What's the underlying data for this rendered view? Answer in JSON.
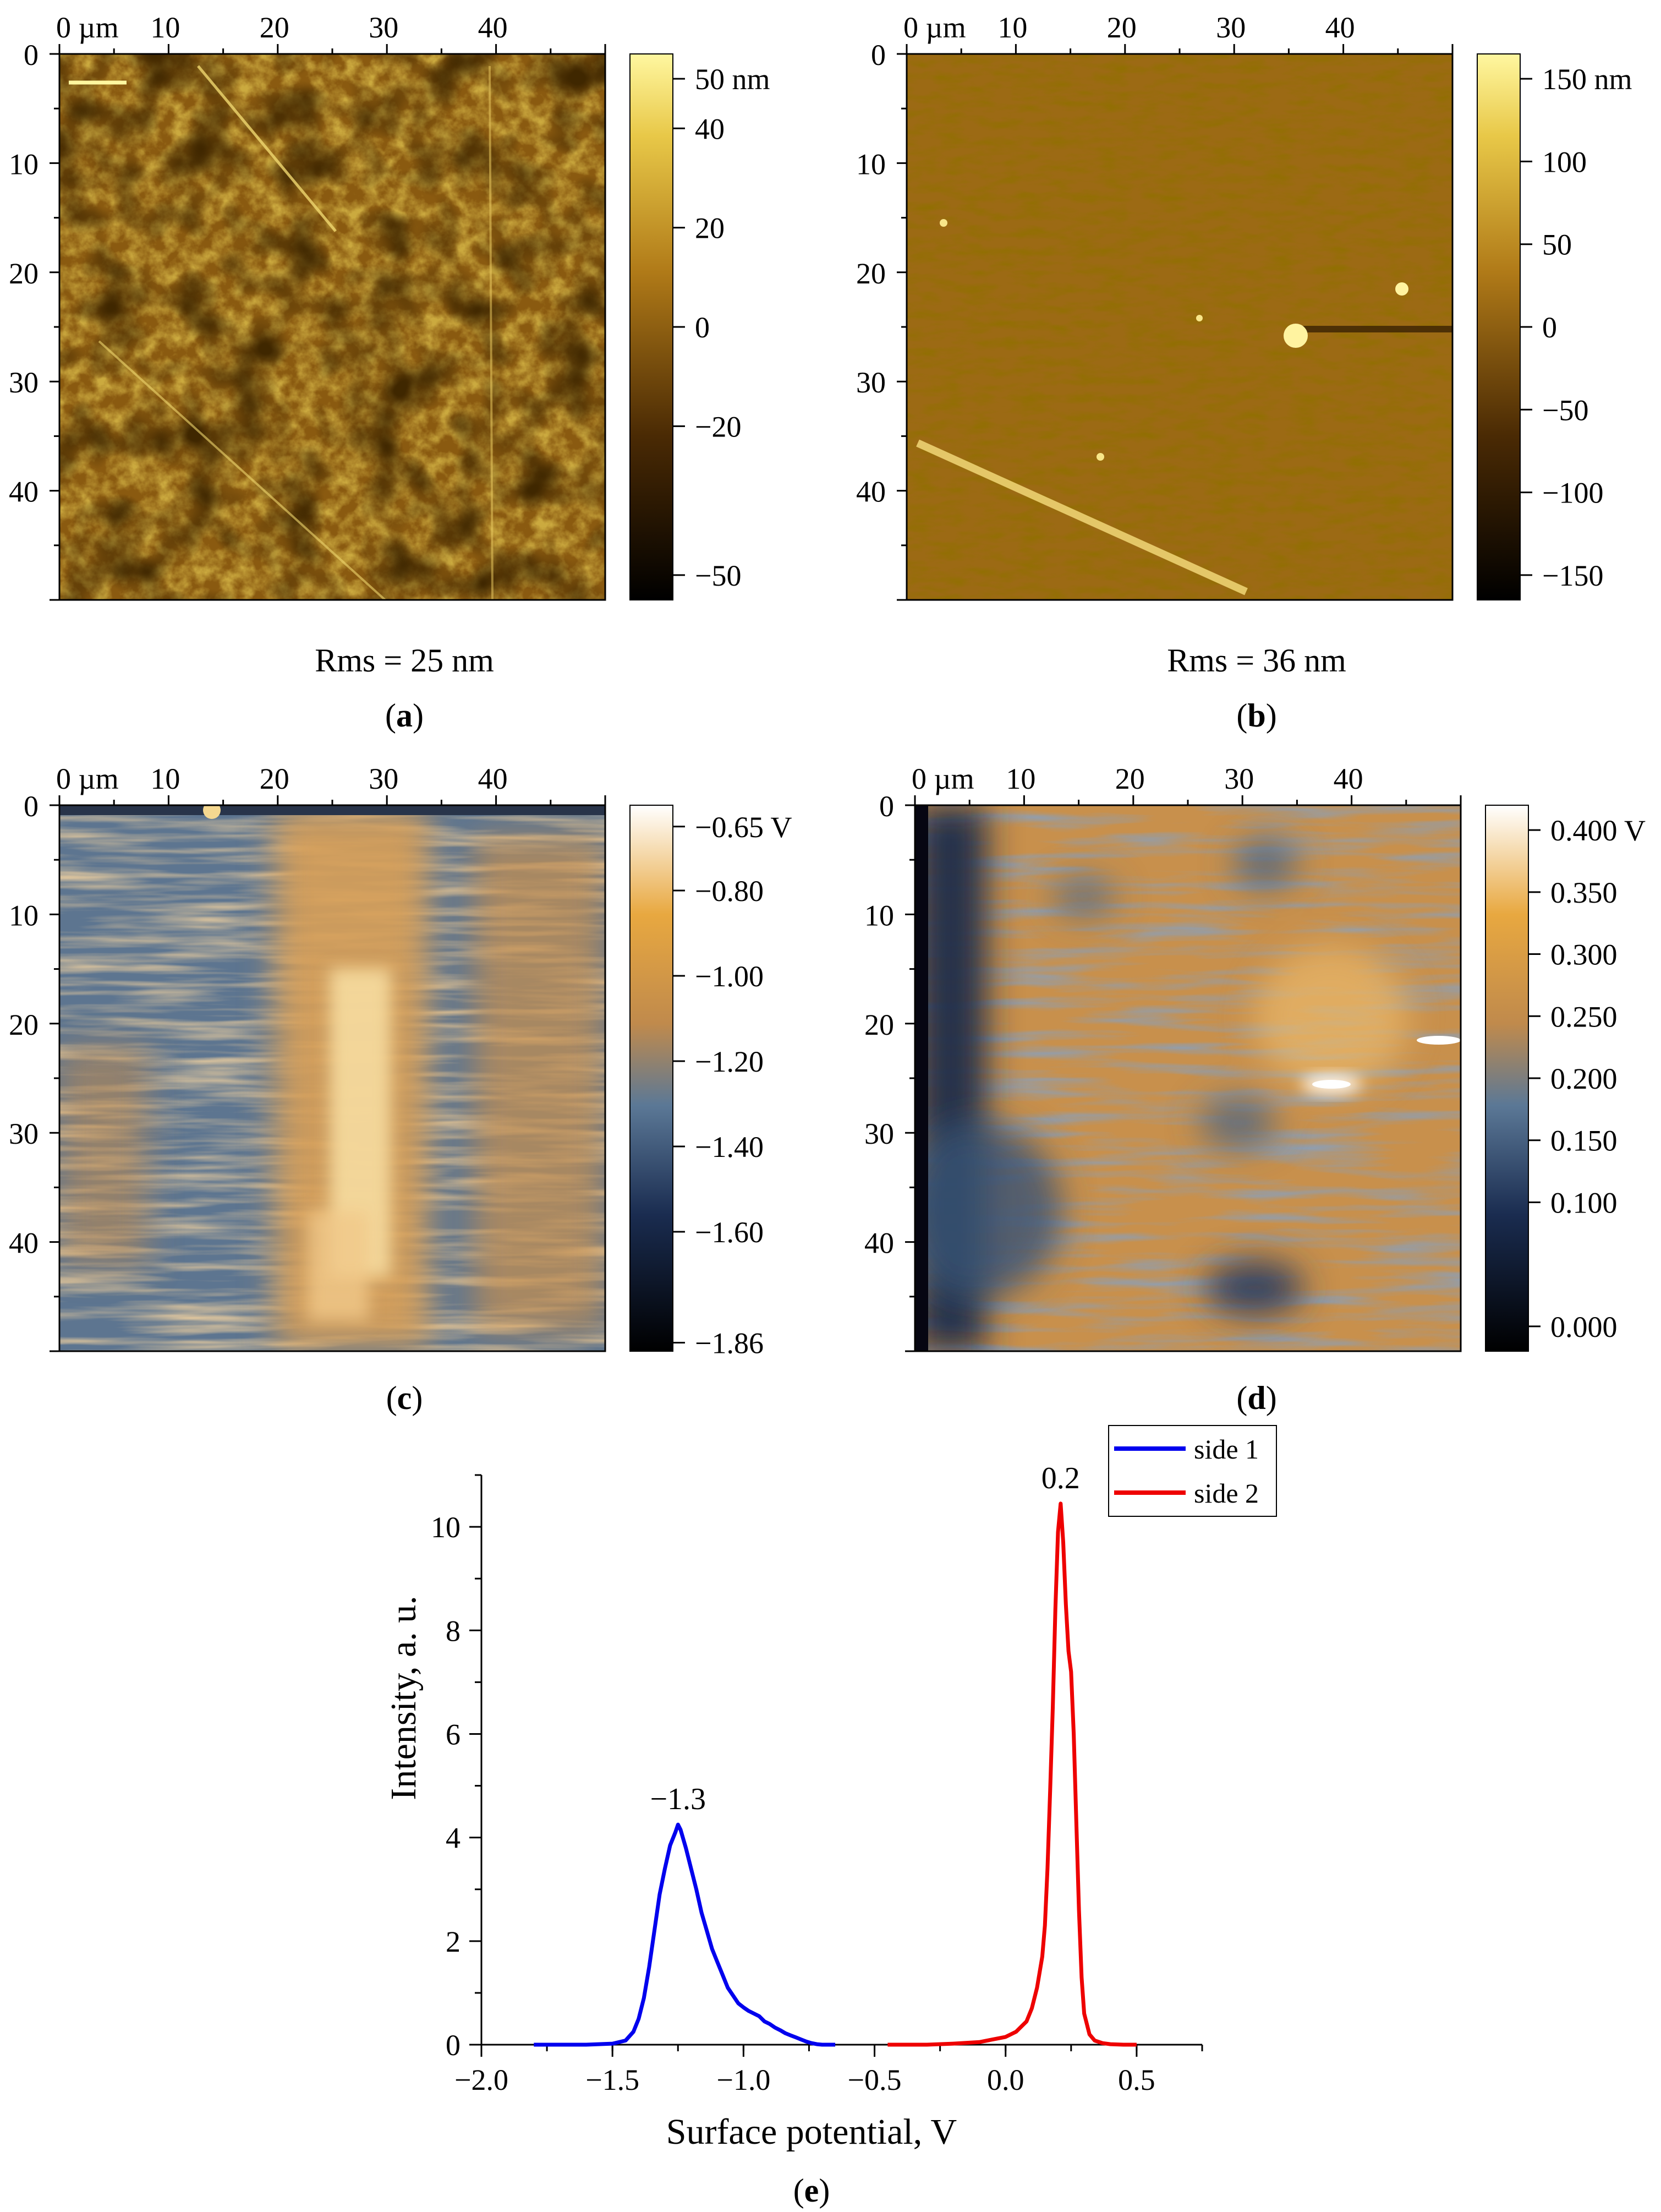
{
  "colors": {
    "afm_dark": "#1a0e02",
    "afm_mid": "#9b6410",
    "afm_light": "#f8ea6c",
    "kpfm_dark": "#0c0c1c",
    "kpfm_blue": "#42648c",
    "kpfm_orange": "#d89a46",
    "kpfm_light": "#ffffff",
    "side1": "#0000ee",
    "side2": "#ee0000"
  },
  "map_axes": {
    "x_ticks": [
      "0 µm",
      "10",
      "20",
      "30",
      "40"
    ],
    "y_ticks": [
      "0",
      "10",
      "20",
      "30",
      "40"
    ]
  },
  "panels": [
    {
      "id": "a",
      "caption": "a",
      "rms": "Rms = 25 nm",
      "colorbar_labels": [
        "50 nm",
        "40",
        "20",
        "0",
        "−20",
        "−50"
      ],
      "colorbar_values": [
        50,
        40,
        20,
        0,
        -20,
        -50
      ],
      "colorbar_range": [
        -55,
        55
      ],
      "scheme": "afm"
    },
    {
      "id": "b",
      "caption": "b",
      "rms": "Rms = 36 nm",
      "colorbar_labels": [
        "150 nm",
        "100",
        "50",
        "0",
        "−50",
        "−100",
        "−150"
      ],
      "colorbar_values": [
        150,
        100,
        50,
        0,
        -50,
        -100,
        -150
      ],
      "colorbar_range": [
        -165,
        165
      ],
      "scheme": "afm"
    },
    {
      "id": "c",
      "caption": "c",
      "colorbar_labels": [
        "−0.65 V",
        "−0.80",
        "−1.00",
        "−1.20",
        "−1.40",
        "−1.60",
        "−1.86"
      ],
      "colorbar_values": [
        -0.65,
        -0.8,
        -1.0,
        -1.2,
        -1.4,
        -1.6,
        -1.86
      ],
      "colorbar_range": [
        -1.88,
        -0.6
      ],
      "scheme": "kpfm"
    },
    {
      "id": "d",
      "caption": "d",
      "colorbar_labels": [
        "0.400 V",
        "0.350",
        "0.300",
        "0.250",
        "0.200",
        "0.150",
        "0.100",
        "0.000"
      ],
      "colorbar_values": [
        0.4,
        0.35,
        0.3,
        0.25,
        0.2,
        0.15,
        0.1,
        0.0
      ],
      "colorbar_range": [
        -0.02,
        0.42
      ],
      "scheme": "kpfm"
    }
  ],
  "chart_data": {
    "type": "line",
    "panel_caption": "e",
    "xlabel": "Surface potential, V",
    "ylabel": "Intensity, a. u.",
    "xlim": [
      -2.0,
      0.75
    ],
    "ylim": [
      0,
      11
    ],
    "x_ticks": [
      -2.0,
      -1.5,
      -1.0,
      -0.5,
      0.0,
      0.5
    ],
    "x_tick_labels": [
      "−2.0",
      "−1.5",
      "−1.0",
      "−0.5",
      "0.0",
      "0.5"
    ],
    "y_ticks": [
      0,
      2,
      4,
      6,
      8,
      10
    ],
    "y_tick_labels": [
      "0",
      "2",
      "4",
      "6",
      "8",
      "10"
    ],
    "legend": {
      "position": "top-right",
      "entries": [
        "side 1",
        "side 2"
      ]
    },
    "series": [
      {
        "name": "side 1",
        "color": "#0000ee",
        "x": [
          -1.8,
          -1.6,
          -1.5,
          -1.45,
          -1.42,
          -1.4,
          -1.38,
          -1.36,
          -1.34,
          -1.32,
          -1.3,
          -1.28,
          -1.26,
          -1.25,
          -1.24,
          -1.22,
          -1.2,
          -1.18,
          -1.16,
          -1.14,
          -1.12,
          -1.1,
          -1.08,
          -1.06,
          -1.04,
          -1.02,
          -1.0,
          -0.98,
          -0.96,
          -0.94,
          -0.92,
          -0.9,
          -0.88,
          -0.86,
          -0.84,
          -0.82,
          -0.8,
          -0.78,
          -0.76,
          -0.74,
          -0.72,
          -0.7,
          -0.65
        ],
        "y": [
          0.0,
          0.0,
          0.02,
          0.08,
          0.25,
          0.5,
          0.9,
          1.5,
          2.2,
          2.9,
          3.4,
          3.85,
          4.1,
          4.25,
          4.15,
          3.8,
          3.4,
          3.0,
          2.55,
          2.2,
          1.85,
          1.6,
          1.35,
          1.1,
          0.95,
          0.8,
          0.72,
          0.65,
          0.6,
          0.55,
          0.45,
          0.4,
          0.33,
          0.28,
          0.22,
          0.18,
          0.14,
          0.1,
          0.06,
          0.03,
          0.01,
          0.0,
          0.0
        ]
      },
      {
        "name": "side 2",
        "color": "#ee0000",
        "x": [
          -0.45,
          -0.3,
          -0.2,
          -0.1,
          -0.05,
          0.0,
          0.04,
          0.08,
          0.1,
          0.12,
          0.14,
          0.15,
          0.16,
          0.17,
          0.18,
          0.19,
          0.2,
          0.21,
          0.22,
          0.23,
          0.24,
          0.25,
          0.26,
          0.27,
          0.28,
          0.29,
          0.3,
          0.32,
          0.34,
          0.37,
          0.4,
          0.45,
          0.5
        ],
        "y": [
          0.0,
          0.0,
          0.02,
          0.05,
          0.1,
          0.15,
          0.25,
          0.45,
          0.7,
          1.1,
          1.7,
          2.3,
          3.4,
          4.9,
          6.5,
          8.4,
          9.9,
          10.45,
          9.7,
          8.5,
          7.6,
          7.2,
          6.0,
          4.3,
          2.6,
          1.3,
          0.6,
          0.2,
          0.08,
          0.03,
          0.01,
          0.0,
          0.0
        ]
      }
    ],
    "annotations": [
      {
        "text": "−1.3",
        "x": -1.25,
        "y": 4.25
      },
      {
        "text": "0.2",
        "x": 0.21,
        "y": 10.45
      }
    ]
  }
}
